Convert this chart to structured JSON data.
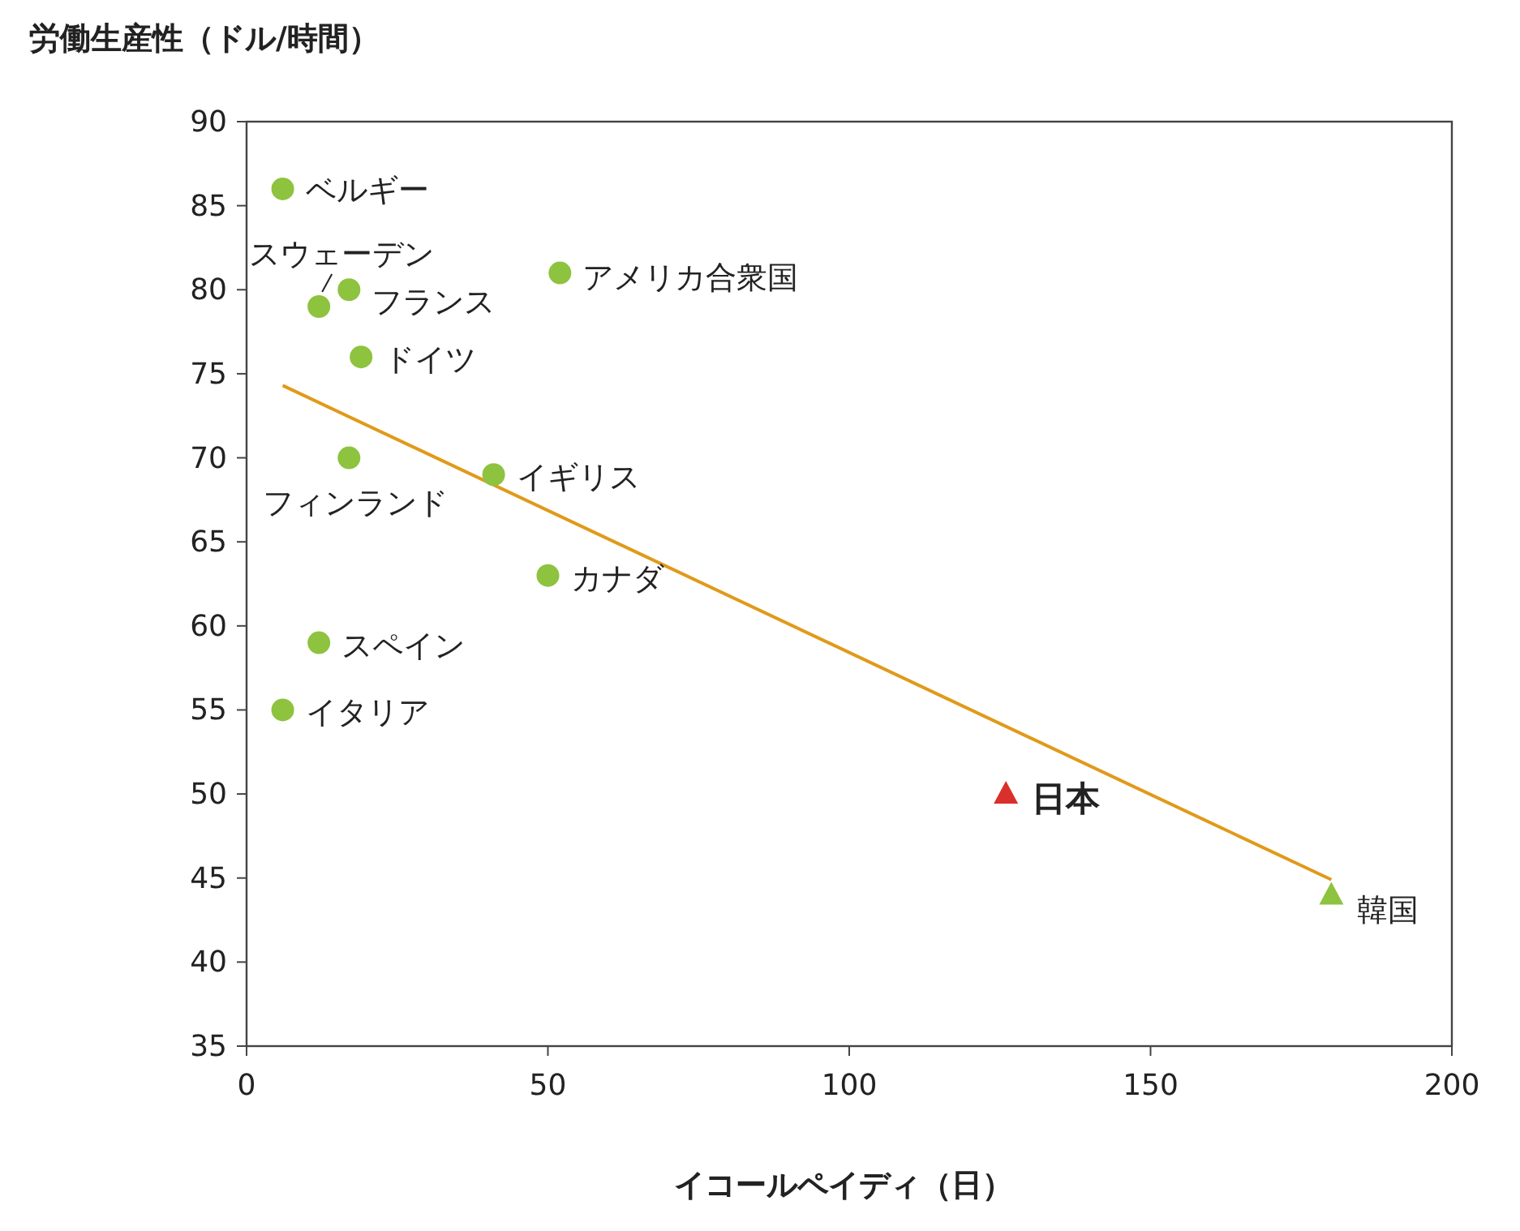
{
  "chart_data": {
    "type": "scatter",
    "ylabel": "労働生産性（ドル/時間）",
    "xlabel": "イコールペイディ（日）",
    "xlim": [
      0,
      200
    ],
    "xticks": [
      0,
      50,
      100,
      150,
      200
    ],
    "ylim": [
      35,
      90
    ],
    "yticks": [
      35,
      40,
      45,
      50,
      55,
      60,
      65,
      70,
      75,
      80,
      85,
      90
    ],
    "grid": false,
    "series": [
      {
        "type": "line",
        "color": "#e09a1a",
        "x": [
          6,
          180
        ],
        "values": [
          74.3,
          44.9
        ],
        "marker": "none",
        "line_style": "solid"
      },
      {
        "name": "ベルギー",
        "color": "#8dc33f",
        "marker": "circle",
        "x": [
          6
        ],
        "values": [
          86
        ]
      },
      {
        "name": "スウェーデン",
        "color": "#8dc33f",
        "marker": "circle",
        "x": [
          12
        ],
        "values": [
          79
        ]
      },
      {
        "name": "フランス",
        "color": "#8dc33f",
        "marker": "circle",
        "x": [
          17
        ],
        "values": [
          80
        ]
      },
      {
        "name": "アメリカ合衆国",
        "color": "#8dc33f",
        "marker": "circle",
        "x": [
          52
        ],
        "values": [
          81
        ]
      },
      {
        "name": "ドイツ",
        "color": "#8dc33f",
        "marker": "circle",
        "x": [
          19
        ],
        "values": [
          76
        ]
      },
      {
        "name": "フィンランド",
        "color": "#8dc33f",
        "marker": "circle",
        "x": [
          17
        ],
        "values": [
          70
        ]
      },
      {
        "name": "イギリス",
        "color": "#8dc33f",
        "marker": "circle",
        "x": [
          41
        ],
        "values": [
          69
        ]
      },
      {
        "name": "カナダ",
        "color": "#8dc33f",
        "marker": "circle",
        "x": [
          50
        ],
        "values": [
          63
        ]
      },
      {
        "name": "スペイン",
        "color": "#8dc33f",
        "marker": "circle",
        "x": [
          12
        ],
        "values": [
          59
        ]
      },
      {
        "name": "イタリア",
        "color": "#8dc33f",
        "marker": "circle",
        "x": [
          6
        ],
        "values": [
          55
        ]
      },
      {
        "name": "日本",
        "color": "#d9302c",
        "marker": "triangle",
        "x": [
          126
        ],
        "values": [
          50
        ]
      },
      {
        "name": "韓国",
        "color": "#8dc33f",
        "marker": "triangle",
        "x": [
          180
        ],
        "values": [
          44
        ]
      }
    ]
  }
}
